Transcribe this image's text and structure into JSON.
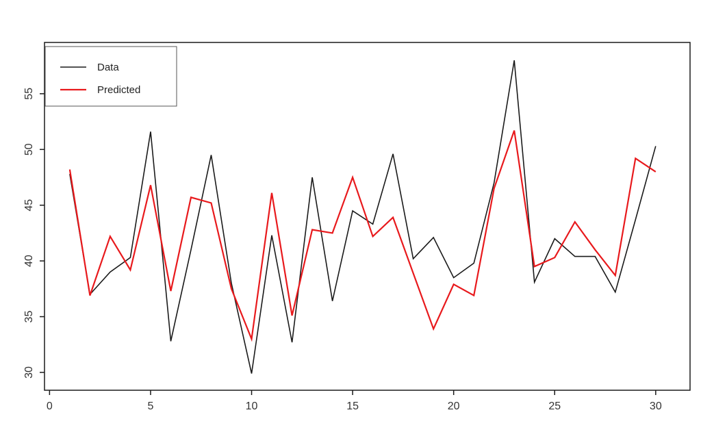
{
  "chart_data": {
    "type": "line",
    "title": "",
    "xlabel": "",
    "ylabel": "",
    "grid": false,
    "background": "#ffffff",
    "axis_color": "#1a1a1a",
    "x": [
      1,
      2,
      3,
      4,
      5,
      6,
      7,
      8,
      9,
      10,
      11,
      12,
      13,
      14,
      15,
      16,
      17,
      18,
      19,
      20,
      21,
      22,
      23,
      24,
      25,
      26,
      27,
      28,
      29,
      30
    ],
    "series": [
      {
        "name": "Data",
        "color": "#1a1a1a",
        "width": 1.6,
        "values": [
          47.8,
          37.0,
          39.0,
          40.3,
          51.6,
          32.8,
          41.0,
          49.5,
          38.0,
          29.9,
          42.3,
          32.7,
          47.5,
          36.4,
          44.5,
          43.3,
          49.6,
          40.2,
          42.1,
          38.5,
          39.8,
          47.0,
          58.0,
          38.1,
          42.0,
          40.4,
          40.4,
          37.2,
          43.7,
          50.3
        ]
      },
      {
        "name": "Predicted",
        "color": "#e8191c",
        "width": 2.2,
        "values": [
          48.2,
          36.9,
          42.2,
          39.2,
          46.8,
          37.3,
          45.7,
          45.2,
          37.5,
          33.0,
          46.1,
          35.1,
          42.8,
          42.5,
          47.5,
          42.2,
          43.9,
          38.9,
          33.9,
          37.9,
          36.9,
          46.5,
          51.7,
          39.5,
          40.3,
          43.5,
          41.0,
          38.7,
          49.2,
          48.0
        ]
      }
    ],
    "x_ticks": [
      0,
      5,
      10,
      15,
      20,
      25,
      30
    ],
    "y_ticks": [
      30,
      35,
      40,
      45,
      50,
      55
    ],
    "xlim": [
      -0.25,
      31.7
    ],
    "ylim": [
      28.4,
      59.6
    ],
    "legend_position": "top-left",
    "legend": {
      "items": [
        {
          "label": "Data",
          "color": "#1a1a1a"
        },
        {
          "label": "Predicted",
          "color": "#e8191c"
        }
      ]
    }
  }
}
